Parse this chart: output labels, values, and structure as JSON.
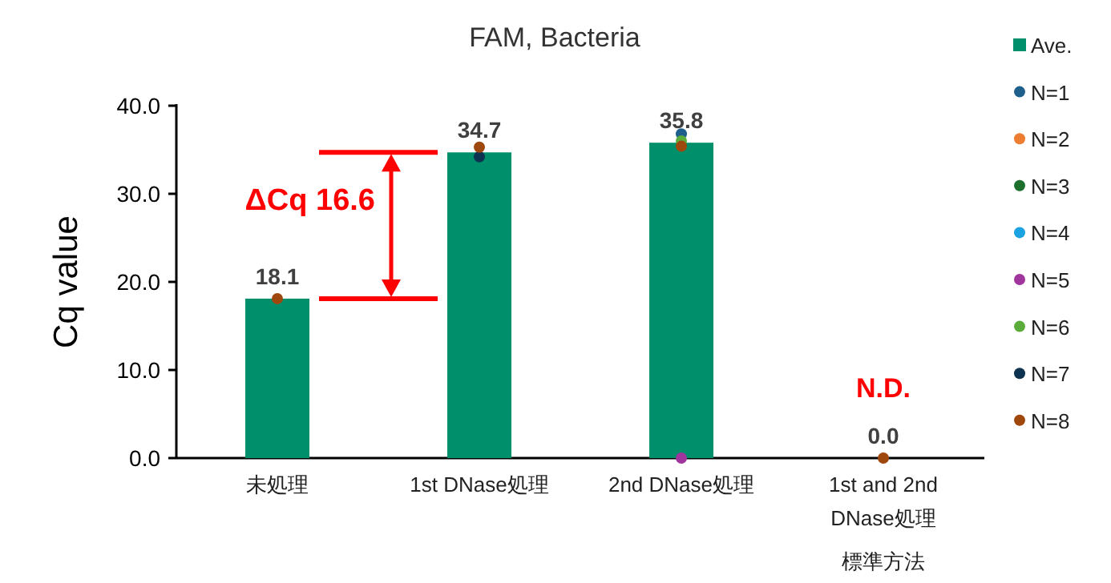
{
  "chart_data": {
    "type": "bar",
    "title": "FAM, Bacteria",
    "ylabel": "Cq value",
    "categories": [
      "未処理",
      "1st DNase処理",
      "2nd DNase処理",
      "1st and 2nd\nDNase処理"
    ],
    "series": [
      {
        "name": "Ave.",
        "color": "#008f6b",
        "values": [
          18.1,
          34.7,
          35.8,
          0.0
        ],
        "value_labels": [
          "18.1",
          "34.7",
          "35.8",
          "0.0"
        ]
      },
      {
        "name": "N=1",
        "type": "scatter",
        "color": "#1f5f8b",
        "values": [
          null,
          null,
          36.8,
          null
        ]
      },
      {
        "name": "N=2",
        "type": "scatter",
        "color": "#ed7d31",
        "values": [
          null,
          null,
          null,
          null
        ]
      },
      {
        "name": "N=3",
        "type": "scatter",
        "color": "#1e6e2e",
        "values": [
          null,
          null,
          null,
          null
        ]
      },
      {
        "name": "N=4",
        "type": "scatter",
        "color": "#1aa3e0",
        "values": [
          null,
          null,
          null,
          null
        ]
      },
      {
        "name": "N=5",
        "type": "scatter",
        "color": "#a0359e",
        "values": [
          null,
          null,
          0,
          null
        ]
      },
      {
        "name": "N=6",
        "type": "scatter",
        "color": "#5aad3a",
        "values": [
          null,
          null,
          36.0,
          null
        ]
      },
      {
        "name": "N=7",
        "type": "scatter",
        "color": "#0e3350",
        "values": [
          null,
          34.2,
          null,
          null
        ]
      },
      {
        "name": "N=8",
        "type": "scatter",
        "color": "#9e480e",
        "values": [
          18.1,
          35.3,
          35.4,
          0
        ]
      }
    ],
    "ylim": [
      0,
      40
    ],
    "yticks": [
      {
        "value": 0,
        "label": "0.0"
      },
      {
        "value": 10,
        "label": "10.0"
      },
      {
        "value": 20,
        "label": "20.0"
      },
      {
        "value": 30,
        "label": "30.0"
      },
      {
        "value": 40,
        "label": "40.0"
      }
    ],
    "annotations": [
      "ΔCq 16.6",
      "N.D.",
      "標準方法"
    ],
    "grid": false,
    "legend": "right",
    "marker": "circle"
  }
}
